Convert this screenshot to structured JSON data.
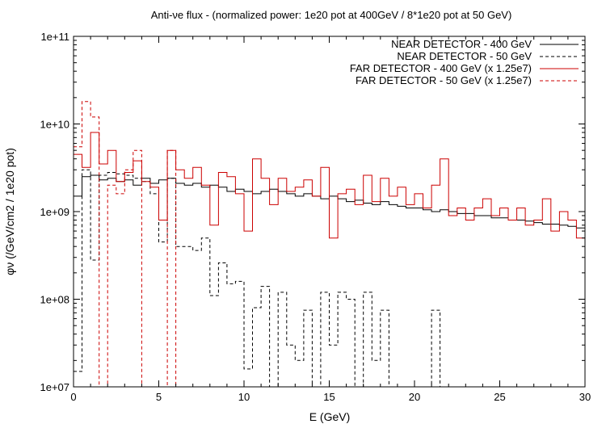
{
  "chart_data": {
    "type": "line",
    "title": "Anti-νe flux  - (normalized power: 1e20 pot at 400GeV / 8*1e20 pot at 50 GeV)",
    "xlabel": "E (GeV)",
    "ylabel": "φν (/GeV/cm2 / 1e20 pot)",
    "xlim": [
      0,
      30
    ],
    "ylim": [
      10000000.0,
      100000000000.0
    ],
    "yscale": "log",
    "x_ticks": [
      "0",
      "5",
      "10",
      "15",
      "20",
      "25",
      "30"
    ],
    "y_ticks": [
      "1e+07",
      "1e+08",
      "1e+09",
      "1e+10",
      "1e+11"
    ],
    "grid": false,
    "legend_position": "top-right",
    "series": [
      {
        "name": "NEAR DETECTOR - 400 GeV",
        "color": "#000000",
        "dash": "solid",
        "style": "step",
        "x": [
          0.25,
          0.75,
          1.25,
          1.75,
          2.25,
          2.75,
          3.25,
          3.75,
          4.25,
          4.75,
          5.25,
          5.75,
          6.25,
          6.75,
          7.25,
          7.75,
          8.25,
          8.75,
          9.25,
          9.75,
          10.25,
          10.75,
          11.25,
          11.75,
          12.25,
          12.75,
          13.25,
          13.75,
          14.25,
          14.75,
          15.25,
          15.75,
          16.25,
          16.75,
          17.25,
          17.75,
          18.25,
          18.75,
          19.25,
          19.75,
          20.25,
          20.75,
          21.25,
          21.75,
          22.25,
          22.75,
          23.25,
          23.75,
          24.25,
          24.75,
          25.25,
          25.75,
          26.25,
          26.75,
          27.25,
          27.75,
          28.25,
          28.75,
          29.25,
          29.75
        ],
        "y": [
          1500000000.0,
          2500000000.0,
          2600000000.0,
          2300000000.0,
          2400000000.0,
          2200000000.0,
          2300000000.0,
          2000000000.0,
          2400000000.0,
          2100000000.0,
          2300000000.0,
          2400000000.0,
          2100000000.0,
          2000000000.0,
          2100000000.0,
          1900000000.0,
          2000000000.0,
          1900000000.0,
          1700000000.0,
          1800000000.0,
          1700000000.0,
          1600000000.0,
          1700000000.0,
          1800000000.0,
          1700000000.0,
          1600000000.0,
          1500000000.0,
          1600000000.0,
          1500000000.0,
          1400000000.0,
          1500000000.0,
          1400000000.0,
          1300000000.0,
          1350000000.0,
          1250000000.0,
          1200000000.0,
          1300000000.0,
          1200000000.0,
          1150000000.0,
          1100000000.0,
          1100000000.0,
          1050000000.0,
          1000000000.0,
          1050000000.0,
          1000000000.0,
          950000000.0,
          950000000.0,
          900000000.0,
          900000000.0,
          850000000.0,
          850000000.0,
          800000000.0,
          800000000.0,
          780000000.0,
          750000000.0,
          720000000.0,
          720000000.0,
          700000000.0,
          680000000.0,
          650000000.0
        ]
      },
      {
        "name": "NEAR DETECTOR - 50 GeV",
        "color": "#000000",
        "dash": "dashed",
        "style": "step",
        "x": [
          0.25,
          0.75,
          1.25,
          1.75,
          2.25,
          2.75,
          3.25,
          3.75,
          4.25,
          4.75,
          5.25,
          5.75,
          6.25,
          6.75,
          7.25,
          7.75,
          8.25,
          8.75,
          9.25,
          9.75,
          10.25,
          10.75,
          11.25,
          11.75,
          12.25,
          12.75,
          13.25,
          13.75,
          14.25,
          14.75,
          15.25,
          15.75,
          16.25,
          16.75,
          17.25,
          17.75,
          18.25,
          18.75,
          19.25,
          19.75,
          20.25,
          20.75,
          21.25,
          21.75
        ],
        "y": [
          15000000.0,
          3000000000.0,
          280000000.0,
          2600000000.0,
          2800000000.0,
          2700000000.0,
          2600000000.0,
          2400000000.0,
          2200000000.0,
          1600000000.0,
          450000000.0,
          2400000000.0,
          400000000.0,
          400000000.0,
          360000000.0,
          500000000.0,
          110000000.0,
          260000000.0,
          150000000.0,
          160000000.0,
          16000000.0,
          80000000.0,
          140000000.0,
          10000000.0,
          120000000.0,
          30000000.0,
          20000000.0,
          75000000.0,
          10000000.0,
          120000000.0,
          30000000.0,
          120000000.0,
          100000000.0,
          10000000.0,
          120000000.0,
          20000000.0,
          75000000.0,
          10000000.0,
          10000000.0,
          10000000.0,
          10000000.0,
          10000000.0,
          75000000.0,
          10000000.0
        ]
      },
      {
        "name": "FAR DETECTOR - 400 GeV (x 1.25e7)",
        "color": "#cc0000",
        "dash": "solid",
        "style": "step",
        "x": [
          0.25,
          0.75,
          1.25,
          1.75,
          2.25,
          2.75,
          3.25,
          3.75,
          4.25,
          4.75,
          5.25,
          5.75,
          6.25,
          6.75,
          7.25,
          7.75,
          8.25,
          8.75,
          9.25,
          9.75,
          10.25,
          10.75,
          11.25,
          11.75,
          12.25,
          12.75,
          13.25,
          13.75,
          14.25,
          14.75,
          15.25,
          15.75,
          16.25,
          16.75,
          17.25,
          17.75,
          18.25,
          18.75,
          19.25,
          19.75,
          20.25,
          20.75,
          21.25,
          21.75,
          22.25,
          22.75,
          23.25,
          23.75,
          24.25,
          24.75,
          25.25,
          25.75,
          26.25,
          26.75,
          27.25,
          27.75,
          28.25,
          28.75,
          29.25,
          29.75
        ],
        "y": [
          4500000000.0,
          3200000000.0,
          8000000000.0,
          3500000000.0,
          5000000000.0,
          2200000000.0,
          2800000000.0,
          3800000000.0,
          2200000000.0,
          1900000000.0,
          800000000.0,
          5000000000.0,
          3000000000.0,
          2400000000.0,
          3200000000.0,
          2000000000.0,
          700000000.0,
          2800000000.0,
          2500000000.0,
          1600000000.0,
          600000000.0,
          4000000000.0,
          2400000000.0,
          1200000000.0,
          2400000000.0,
          1700000000.0,
          1900000000.0,
          2300000000.0,
          1500000000.0,
          3200000000.0,
          500000000.0,
          1600000000.0,
          1800000000.0,
          1200000000.0,
          2600000000.0,
          1300000000.0,
          2400000000.0,
          1500000000.0,
          1900000000.0,
          1200000000.0,
          1600000000.0,
          1100000000.0,
          2000000000.0,
          4000000000.0,
          900000000.0,
          1100000000.0,
          800000000.0,
          1100000000.0,
          1400000000.0,
          900000000.0,
          1100000000.0,
          800000000.0,
          1100000000.0,
          700000000.0,
          800000000.0,
          1400000000.0,
          600000000.0,
          1000000000.0,
          800000000.0,
          500000000.0
        ]
      },
      {
        "name": "FAR DETECTOR - 50 GeV (x 1.25e7)",
        "color": "#cc0000",
        "dash": "dashed",
        "style": "step",
        "x": [
          0.25,
          0.75,
          1.25,
          1.75,
          2.25,
          2.75,
          3.25,
          3.75,
          4.25,
          4.75,
          5.25,
          5.75,
          6.25
        ],
        "y": [
          5500000000.0,
          18000000000.0,
          12000000000.0,
          10000000.0,
          2000000000.0,
          1600000000.0,
          3000000000.0,
          5000000000.0,
          10000000.0,
          10000000.0,
          10000000.0,
          5000000000.0,
          10000000.0
        ]
      }
    ]
  }
}
